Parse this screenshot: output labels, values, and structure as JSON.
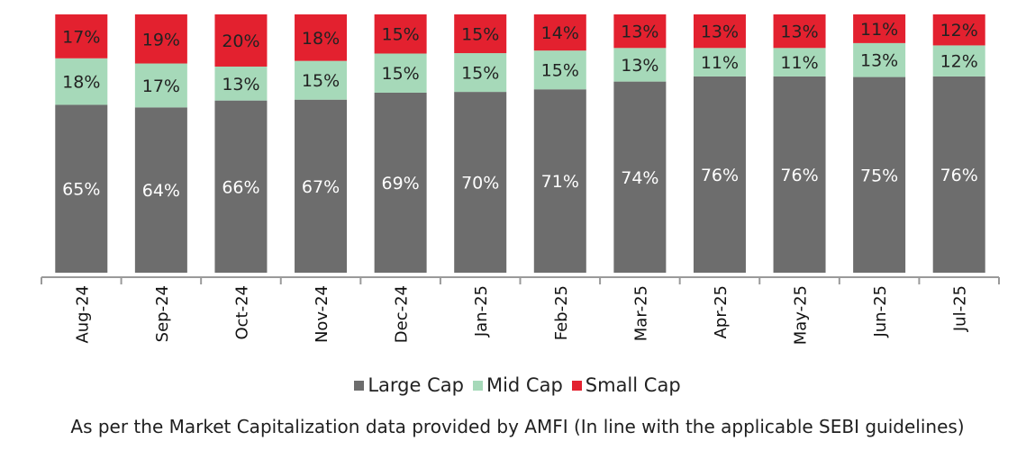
{
  "chart_data": {
    "type": "bar",
    "stacked": true,
    "categories": [
      "Aug-24",
      "Sep-24",
      "Oct-24",
      "Nov-24",
      "Dec-24",
      "Jan-25",
      "Feb-25",
      "Mar-25",
      "Apr-25",
      "May-25",
      "Jun-25",
      "Jul-25"
    ],
    "series": [
      {
        "name": "Large Cap",
        "color": "#6d6d6d",
        "values": [
          65,
          64,
          66,
          67,
          69,
          70,
          71,
          74,
          76,
          76,
          75,
          76
        ]
      },
      {
        "name": "Mid Cap",
        "color": "#a6d9b9",
        "values": [
          18,
          17,
          13,
          15,
          15,
          15,
          15,
          13,
          11,
          11,
          13,
          12
        ]
      },
      {
        "name": "Small Cap",
        "color": "#e3212f",
        "values": [
          17,
          19,
          20,
          18,
          15,
          15,
          14,
          13,
          13,
          13,
          11,
          12
        ]
      }
    ],
    "value_suffix": "%",
    "legend_position": "bottom",
    "grid": false
  },
  "footnote": "As per the Market Capitalization data provided by AMFI (In line with the applicable SEBI guidelines)"
}
